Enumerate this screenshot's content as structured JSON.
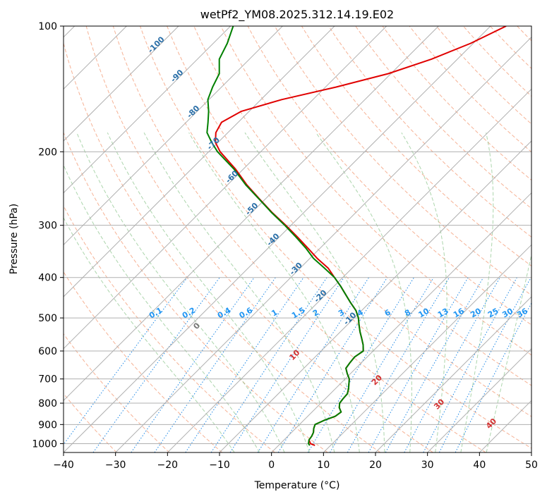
{
  "chart_data": {
    "type": "line",
    "subtype": "skew-t log-p",
    "title": "wetPf2_YM08.2025.312.14.19.E02",
    "xlabel": "Temperature (°C)",
    "ylabel": "Pressure (hPa)",
    "xlim": [
      -40,
      50
    ],
    "ylim": [
      1050,
      100
    ],
    "x_ticks": [
      -40,
      -30,
      -20,
      -10,
      0,
      10,
      20,
      30,
      40,
      50
    ],
    "y_ticks": [
      100,
      200,
      300,
      400,
      500,
      600,
      700,
      800,
      900,
      1000
    ],
    "x_tick_labels": [
      "−40",
      "−30",
      "−20",
      "−10",
      "0",
      "10",
      "20",
      "30",
      "40",
      "50"
    ],
    "y_tick_labels": [
      "100",
      "200",
      "300",
      "400",
      "500",
      "600",
      "700",
      "800",
      "900",
      "1000"
    ],
    "grid": true,
    "isotherm_labels": [
      {
        "value": -100,
        "text": "-100",
        "p": 112
      },
      {
        "value": -90,
        "text": "-90",
        "p": 133
      },
      {
        "value": -80,
        "text": "-80",
        "p": 162
      },
      {
        "value": -70,
        "text": "-70",
        "p": 193
      },
      {
        "value": -60,
        "text": "-60",
        "p": 232
      },
      {
        "value": -50,
        "text": "-50",
        "p": 277
      },
      {
        "value": -40,
        "text": "-40",
        "p": 328
      },
      {
        "value": -30,
        "text": "-30",
        "p": 385
      },
      {
        "value": -20,
        "text": "-20",
        "p": 448
      },
      {
        "value": -10,
        "text": "-10",
        "p": 507
      }
    ],
    "mixing_ratio_labels": [
      "0.1",
      "0.2",
      "0.4",
      "0.6",
      "1",
      "1.5",
      "2",
      "3",
      "4",
      "6",
      "8",
      "10",
      "13",
      "16",
      "20",
      "25",
      "30",
      "36"
    ],
    "mixing_ratio_values": [
      0.1,
      0.2,
      0.4,
      0.6,
      1,
      1.5,
      2,
      3,
      4,
      6,
      8,
      10,
      13,
      16,
      20,
      25,
      30,
      36
    ],
    "mixing_ratio_label_pressure": 500,
    "moist_adiabat_labels": [
      {
        "text": "0",
        "theta_w": 0,
        "p": 520
      },
      {
        "text": "10",
        "theta_w": 10,
        "p": 610
      },
      {
        "text": "20",
        "theta_w": 20,
        "p": 700
      },
      {
        "text": "30",
        "theta_w": 30,
        "p": 800
      },
      {
        "text": "40",
        "theta_w": 40,
        "p": 890
      }
    ],
    "dry_adiabats_theta_K": [
      230,
      240,
      250,
      260,
      270,
      280,
      290,
      300,
      310,
      320,
      330,
      340,
      350,
      360,
      370,
      380,
      390,
      400,
      410,
      420,
      430,
      440,
      450,
      460,
      470,
      480,
      490,
      500
    ],
    "moist_adiabats_theta_w_C": [
      -10,
      -5,
      0,
      5,
      10,
      15,
      20,
      25,
      30,
      35,
      40
    ],
    "series": [
      {
        "name": "Temperature",
        "color": "#e00000",
        "pressure": [
          1010,
          1000,
          980,
          960,
          940,
          920,
          900,
          880,
          860,
          840,
          820,
          800,
          780,
          760,
          740,
          720,
          700,
          680,
          660,
          640,
          620,
          600,
          580,
          560,
          540,
          520,
          500,
          480,
          460,
          440,
          420,
          400,
          380,
          360,
          340,
          320,
          300,
          280,
          260,
          240,
          220,
          200,
          190,
          180,
          170,
          160,
          150,
          140,
          130,
          120,
          110,
          100
        ],
        "temperature": [
          7.0,
          5.8,
          4.8,
          4.6,
          4.2,
          3.5,
          3.0,
          3.9,
          5.3,
          5.6,
          4.4,
          3.6,
          3.4,
          3.3,
          2.6,
          1.7,
          0.8,
          -0.6,
          -1.9,
          -2.2,
          -2.4,
          -1.9,
          -3.1,
          -4.6,
          -6.2,
          -7.7,
          -9.2,
          -11.1,
          -13.6,
          -16.1,
          -18.7,
          -21.6,
          -24.6,
          -28.6,
          -32.4,
          -36.5,
          -41.0,
          -46.0,
          -51.0,
          -56.3,
          -61.5,
          -67.8,
          -70.5,
          -72.3,
          -73.2,
          -71.5,
          -66.0,
          -58.0,
          -50.5,
          -45.0,
          -40.5,
          -37.0
        ]
      },
      {
        "name": "Dewpoint",
        "color": "#008000",
        "pressure": [
          1010,
          1000,
          980,
          960,
          940,
          920,
          900,
          880,
          860,
          840,
          820,
          800,
          780,
          760,
          740,
          720,
          700,
          680,
          660,
          640,
          620,
          600,
          580,
          560,
          540,
          520,
          500,
          480,
          460,
          440,
          420,
          400,
          380,
          360,
          340,
          320,
          300,
          280,
          260,
          240,
          220,
          200,
          190,
          180,
          170,
          160,
          150,
          140,
          130,
          120,
          110,
          100
        ],
        "temperature": [
          6.0,
          5.4,
          4.8,
          4.6,
          4.2,
          3.5,
          3.0,
          3.9,
          5.3,
          5.6,
          4.4,
          3.6,
          3.4,
          3.3,
          2.6,
          1.7,
          0.8,
          -0.6,
          -1.9,
          -2.2,
          -2.4,
          -1.9,
          -3.1,
          -4.6,
          -6.2,
          -7.7,
          -9.2,
          -11.1,
          -13.6,
          -16.1,
          -18.7,
          -21.6,
          -25.3,
          -29.3,
          -32.8,
          -36.8,
          -41.2,
          -46.1,
          -51.1,
          -56.5,
          -61.8,
          -68.3,
          -71.2,
          -74.0,
          -75.8,
          -77.8,
          -80.2,
          -81.7,
          -83.0,
          -85.8,
          -87.3,
          -89.5
        ]
      }
    ]
  }
}
